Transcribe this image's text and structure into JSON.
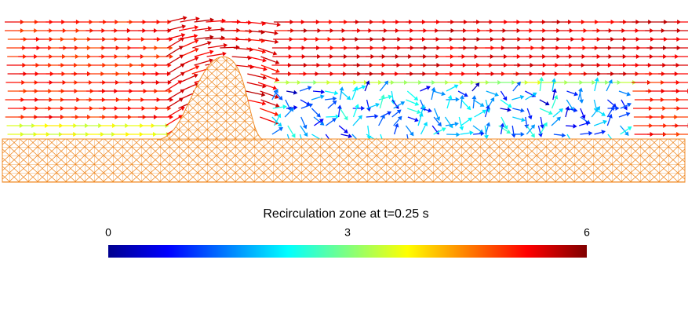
{
  "title": "Recirculation zone at t=0.25 s",
  "colorbar": {
    "lim": [
      0,
      6
    ],
    "ticks": [
      0,
      3,
      6
    ],
    "colormap": "jet"
  }
}
